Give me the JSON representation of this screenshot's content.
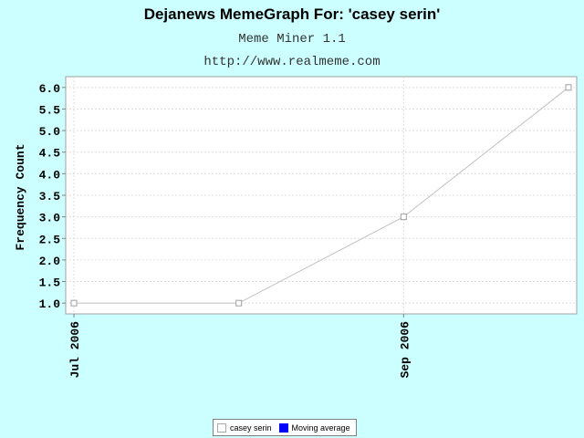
{
  "chart_data": {
    "type": "line",
    "title": "Dejanews MemeGraph For: 'casey serin'",
    "subtitle_1": "Meme Miner 1.1",
    "subtitle_2": "http://www.realmeme.com",
    "xlabel": "",
    "ylabel": "Frequency Count",
    "x_tick_labels": [
      "Jul 2006",
      "Sep 2006"
    ],
    "y_ticks": [
      "1.0",
      "1.5",
      "2.0",
      "2.5",
      "3.0",
      "3.5",
      "4.0",
      "4.5",
      "5.0",
      "5.5",
      "6.0"
    ],
    "ylim": [
      0.75,
      6.25
    ],
    "x_range_months": [
      -0.05,
      3.05
    ],
    "grid": true,
    "series": [
      {
        "name": "casey serin",
        "x_months_from_jul_2006": [
          0,
          1,
          2,
          3
        ],
        "values": [
          1,
          1,
          3,
          6
        ],
        "color": "#c0c0c0"
      },
      {
        "name": "Moving average",
        "values": [],
        "color": "#0000ff"
      }
    ],
    "legend_position": "bottom-center"
  },
  "colors": {
    "background": "#ccffff",
    "plot_background": "#ffffff",
    "grid": "#dddddd",
    "axis": "#808080"
  }
}
